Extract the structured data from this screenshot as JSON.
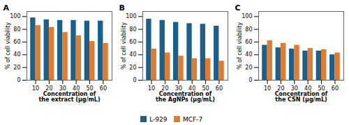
{
  "chart_data": [
    {
      "type": "bar",
      "title": "A",
      "xlabel": "Concentration of\nthe extract (μg/mL)",
      "ylabel": "% of cell viability",
      "categories": [
        10,
        20,
        30,
        40,
        50,
        60
      ],
      "series": [
        {
          "name": "L-929",
          "color": "#1b5f8c",
          "values": [
            98,
            95,
            94,
            94,
            93,
            93
          ]
        },
        {
          "name": "MCF-7",
          "color": "#e07b30",
          "values": [
            86,
            83,
            75,
            70,
            61,
            58
          ]
        }
      ],
      "ylim": [
        0,
        108
      ],
      "yticks": [
        0,
        20,
        40,
        60,
        80,
        100
      ],
      "legend": "bottom"
    },
    {
      "type": "bar",
      "title": "B",
      "xlabel": "Concentration of\nthe AgNPs (μg/mL)",
      "ylabel": "% of cell viability",
      "categories": [
        10,
        20,
        30,
        40,
        50,
        60
      ],
      "series": [
        {
          "name": "L-929",
          "color": "#1b5f8c",
          "values": [
            96,
            94,
            91,
            89,
            88,
            85
          ]
        },
        {
          "name": "MCF-7",
          "color": "#e07b30",
          "values": [
            49,
            43,
            38,
            34,
            34,
            30
          ]
        }
      ],
      "ylim": [
        0,
        108
      ],
      "yticks": [
        0,
        20,
        40,
        60,
        80,
        100
      ],
      "legend": "bottom"
    },
    {
      "type": "bar",
      "title": "C",
      "xlabel": "Concentration of\nthe CSN (μg/mL)",
      "ylabel": "% of cell viability",
      "categories": [
        10,
        20,
        30,
        40,
        50,
        60
      ],
      "series": [
        {
          "name": "L-929",
          "color": "#1b5f8c",
          "values": [
            55,
            51,
            49,
            46,
            46,
            40
          ]
        },
        {
          "name": "MCF-7",
          "color": "#e07b30",
          "values": [
            62,
            58,
            55,
            50,
            48,
            43
          ]
        }
      ],
      "ylim": [
        0,
        108
      ],
      "yticks": [
        0,
        20,
        40,
        60,
        80,
        100
      ],
      "legend": "bottom"
    }
  ]
}
